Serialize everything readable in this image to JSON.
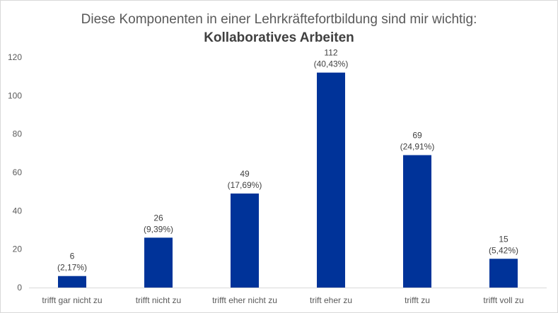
{
  "chart_data": {
    "type": "bar",
    "title": "Diese Komponenten in einer Lehrkräftefortbildung sind mir wichtig:",
    "subtitle": "Kollaboratives Arbeiten",
    "xlabel": "",
    "ylabel": "",
    "ylim": [
      0,
      120
    ],
    "yticks": [
      0,
      20,
      40,
      60,
      80,
      100,
      120
    ],
    "grid": false,
    "legend": "none",
    "bar_color": "#003399",
    "categories": [
      "trifft gar nicht zu",
      "trifft nicht zu",
      "trifft eher nicht zu",
      "trift eher zu",
      "trifft zu",
      "trifft voll zu"
    ],
    "values": [
      6,
      26,
      49,
      112,
      69,
      15
    ],
    "percent_labels": [
      "(2,17%)",
      "(9,39%)",
      "(17,69%)",
      "(40,43%)",
      "(24,91%)",
      "(5,42%)"
    ]
  }
}
